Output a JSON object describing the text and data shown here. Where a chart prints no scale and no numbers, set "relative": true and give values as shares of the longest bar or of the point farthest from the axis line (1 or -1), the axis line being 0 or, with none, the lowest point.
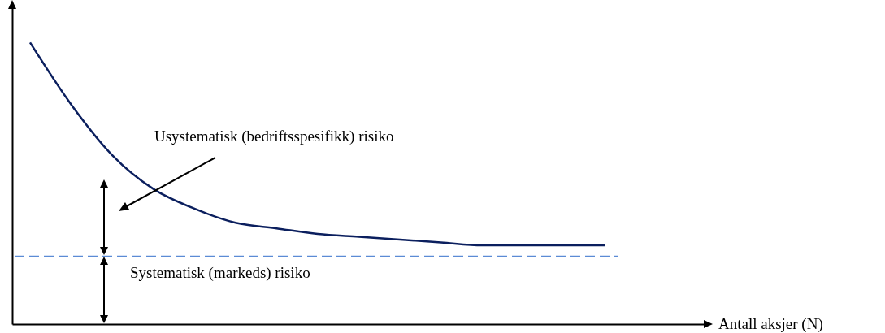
{
  "chart_data": {
    "type": "line",
    "relative": true,
    "categories": [
      null,
      null,
      null,
      null,
      null,
      null,
      null,
      null,
      null,
      null,
      null,
      null,
      null,
      null,
      null
    ],
    "series": [
      {
        "color": "#0b1f5e",
        "values": [
          1,
          0.78,
          0.6,
          0.48,
          0.41,
          0.36,
          0.34,
          0.32,
          0.31,
          0.3,
          0.29,
          0.28,
          0.28,
          0.28,
          0.28
        ]
      }
    ],
    "ref_lines": [
      {
        "axis": "y",
        "value": 0.24,
        "color": "#5b8bd5",
        "line_style": "dashed"
      }
    ],
    "annotations": [
      "Usystematisk (bedriftsspesifikk) risiko",
      "Systematisk (markeds) risiko",
      "Antall aksjer (N)"
    ],
    "grid": false,
    "marker": "none",
    "line_style": "solid"
  }
}
